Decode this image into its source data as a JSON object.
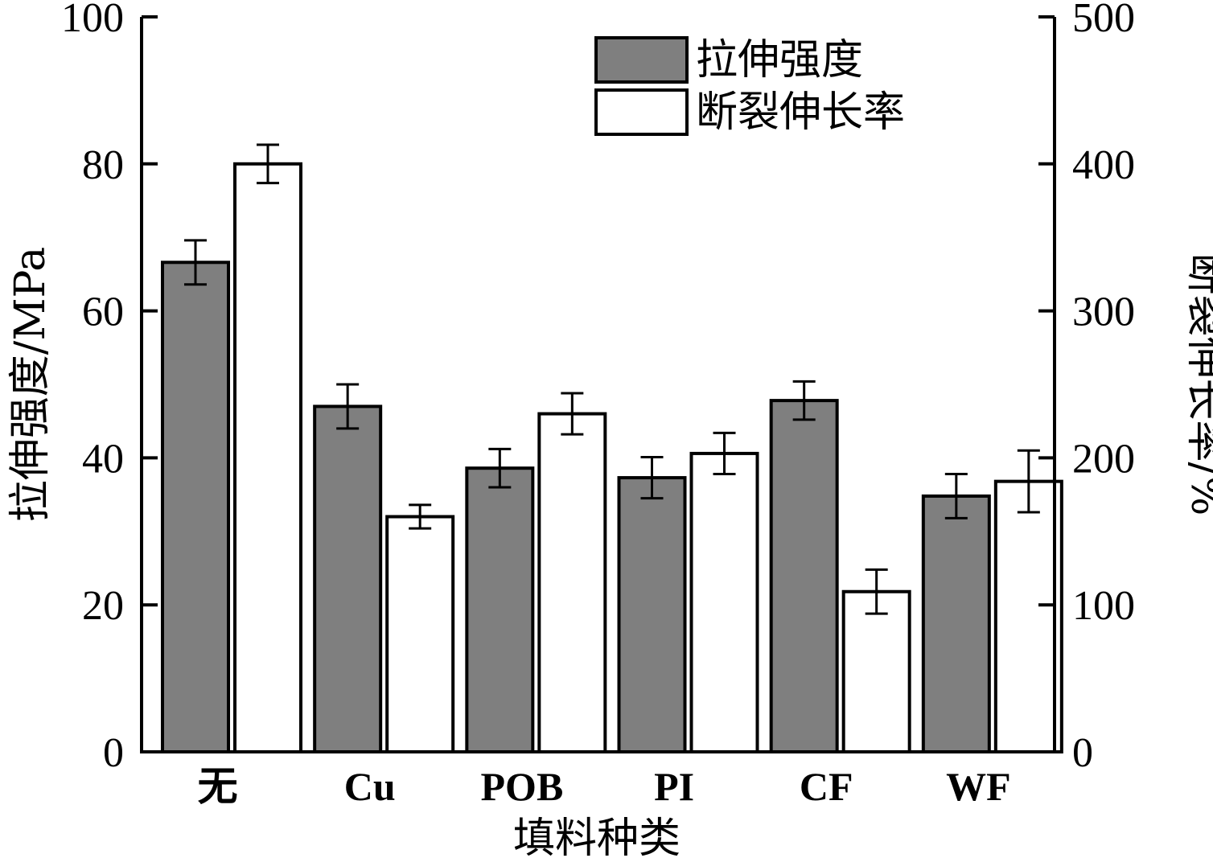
{
  "chart_data": {
    "type": "bar",
    "xlabel": "填料种类",
    "categories": [
      "无",
      "Cu",
      "POB",
      "PI",
      "CF",
      "WF"
    ],
    "y_left": {
      "label": "拉伸强度/MPa",
      "lim": [
        0,
        100
      ],
      "ticks": [
        0,
        20,
        40,
        60,
        80,
        100
      ]
    },
    "y_right": {
      "label": "断裂伸长率/%",
      "lim": [
        0,
        500
      ],
      "ticks": [
        0,
        100,
        200,
        300,
        400,
        500
      ]
    },
    "series": [
      {
        "name": "拉伸强度",
        "axis": "left",
        "color": "#7f7f7f",
        "values": [
          66.6,
          47.0,
          38.6,
          37.3,
          47.8,
          34.8
        ],
        "errors": [
          3.0,
          3.0,
          2.6,
          2.8,
          2.6,
          3.0
        ]
      },
      {
        "name": "断裂伸长率",
        "axis": "right",
        "color": "#ffffff",
        "values": [
          400,
          160,
          230,
          203,
          109,
          184
        ],
        "errors": [
          13,
          8,
          14,
          14,
          15,
          21
        ]
      }
    ],
    "legend": {
      "position": "top-right"
    },
    "grid": false
  }
}
